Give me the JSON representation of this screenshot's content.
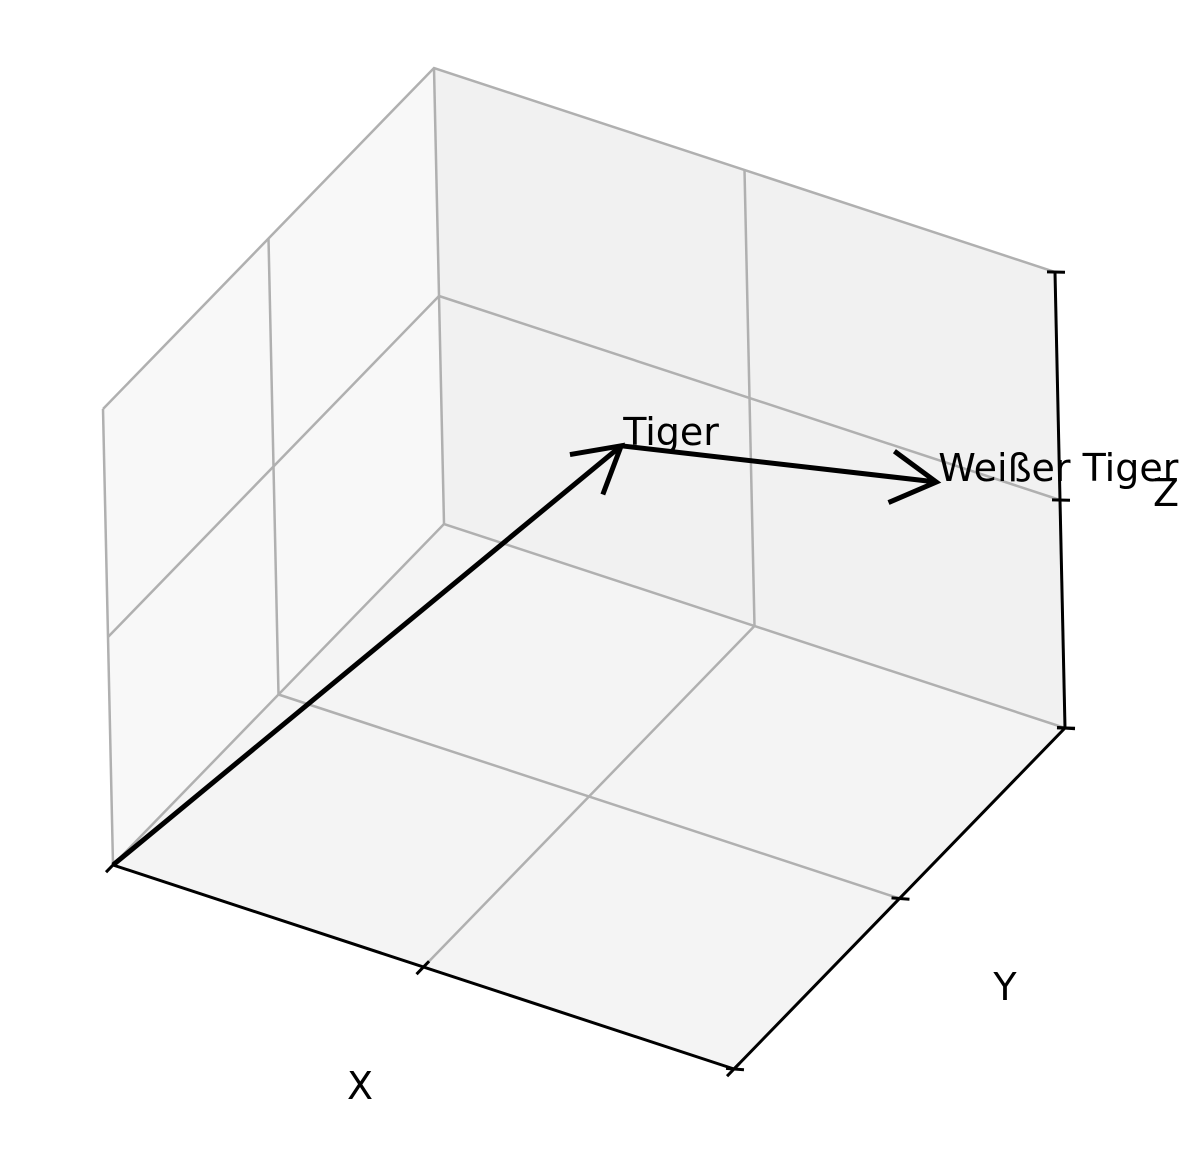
{
  "chart_data": {
    "type": "3d-quiver",
    "title": "",
    "xlabel": "X",
    "ylabel": "Y",
    "zlabel": "Z",
    "xlim": [
      0,
      1
    ],
    "ylim": [
      0,
      1
    ],
    "zlim": [
      0,
      1
    ],
    "grid": true,
    "tick_labels_shown": false,
    "vectors": [
      {
        "label": "Tiger",
        "start": [
          0,
          0,
          0
        ],
        "end": [
          0.4,
          0.8,
          0.5
        ]
      },
      {
        "label": "Weißer Tiger",
        "start": [
          0.4,
          0.8,
          0.5
        ],
        "end": [
          0.8,
          1.0,
          0.45
        ]
      }
    ],
    "colors": {
      "vector": "#000000",
      "grid": "#b0b0b0"
    }
  }
}
